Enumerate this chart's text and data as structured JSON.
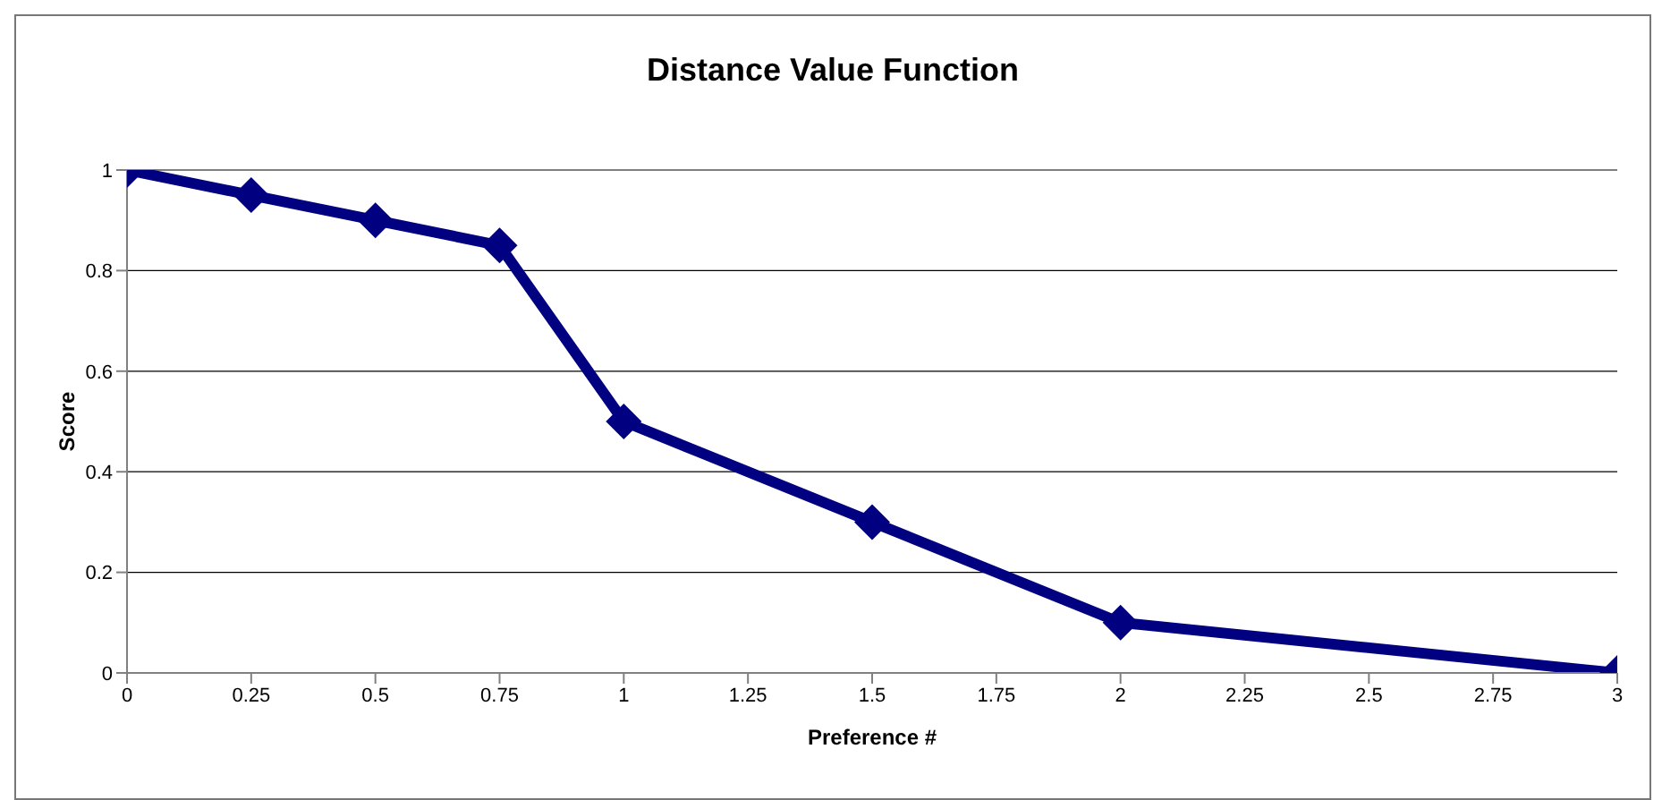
{
  "chart_data": {
    "type": "line",
    "title": "Distance Value Function",
    "xlabel": "Preference #",
    "ylabel": "Score",
    "x": [
      0,
      0.25,
      0.5,
      0.75,
      1,
      1.5,
      2,
      3
    ],
    "series": [
      {
        "color": "#000080",
        "values": [
          1,
          0.95,
          0.9,
          0.85,
          0.5,
          0.3,
          0.1,
          0
        ]
      }
    ],
    "xlim": [
      0,
      3
    ],
    "xticks": [
      0,
      0.25,
      0.5,
      0.75,
      1,
      1.25,
      1.5,
      1.75,
      2,
      2.25,
      2.5,
      2.75,
      3
    ],
    "ylim": [
      0,
      1
    ],
    "yticks": [
      0,
      0.2,
      0.4,
      0.6,
      0.8,
      1
    ],
    "grid": "y",
    "marker": "diamond",
    "line_style": "solid"
  }
}
